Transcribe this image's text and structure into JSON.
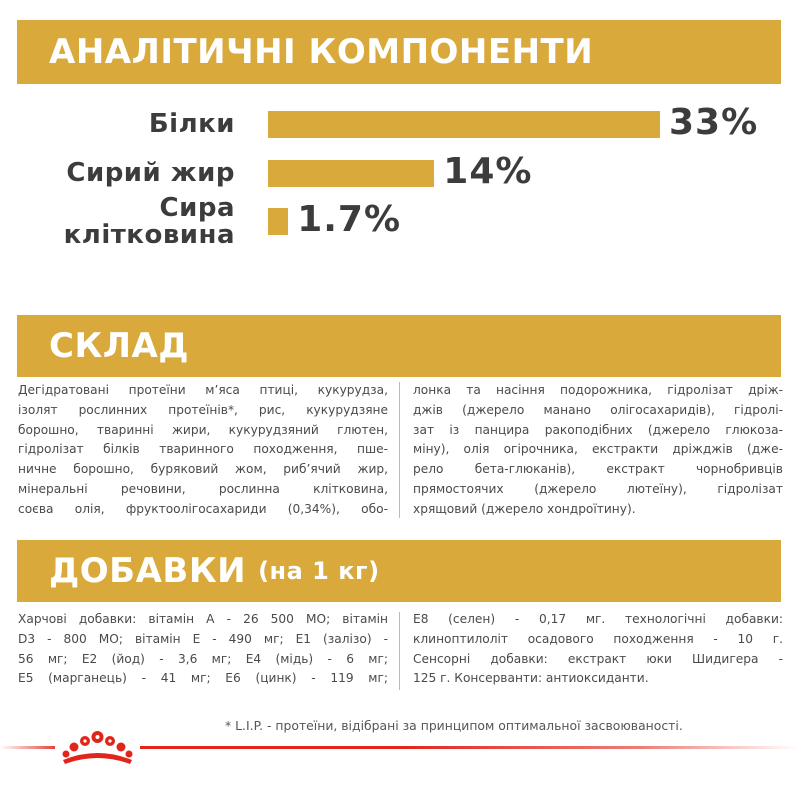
{
  "analytics": {
    "title": "АНАЛІТИЧНІ КОМПОНЕНТИ",
    "rows": [
      {
        "label_lines": [
          "Білки"
        ],
        "value": 33,
        "display": "33%"
      },
      {
        "label_lines": [
          "Сирий жир"
        ],
        "value": 14,
        "display": "14%"
      },
      {
        "label_lines": [
          "Сира",
          "клітковина"
        ],
        "value": 1.7,
        "display": "1.7%"
      }
    ],
    "bar_color": "#d9aa3b"
  },
  "composition": {
    "title": "СКЛАД",
    "left_lines": [
      "Дегідратовані протеїни м’яса птиці, кукурудза,",
      "ізолят рослинних протеїнів*, рис, кукурудзяне",
      "борошно, тваринні жири, кукурудзяний глютен,",
      "гідролізат білків тваринного походження, пше-",
      "ничне борошно, буряковий жом, риб’ячий жир,",
      "мінеральні речовини, рослинна клітковина,",
      "соєва олія, фруктоолігосахариди (0,34%), обо-"
    ],
    "right_lines": [
      "лонка та насіння подорожника, гідролізат дріж-",
      "джів (джерело манано олігосахаридів), гідролі-",
      "зат із панцира ракоподібних (джерело глюкоза-",
      "міну), олія огірочника, екстракти дріжджів (дже-",
      "рело бета-глюканів), екстракт чорнобривців",
      "прямостоячих (джерело лютеїну), гідролізат",
      "хрящовий (джерело хондроїтину)."
    ]
  },
  "additives": {
    "title": "ДОБАВКИ",
    "subtitle": "(на 1 кг)",
    "left_lines": [
      "Харчові добавки: вітамін А - 26 500 МО; вітамін",
      "D3 - 800 МО; вітамін Е - 490 мг; Е1 (залізо) -",
      "56 мг; Е2 (йод) - 3,6 мг; Е4 (мідь) - 6 мг;",
      "Е5 (марганець) - 41 мг; Е6 (цинк) - 119 мг;"
    ],
    "right_lines": [
      "Е8 (селен) - 0,17 мг. технологічні добавки:",
      "клиноптилоліт осадового походження - 10 г.",
      "Сенсорні добавки: екстракт юки Шидигера -",
      "125 г. Консерванти: антиоксиданти."
    ]
  },
  "footnote": "* L.I.P. - протеїни, відібрані за принципом оптимальної засвоюваності.",
  "brand": {
    "accent": "#e1251b",
    "icon": "royal-canin-crown-icon"
  }
}
